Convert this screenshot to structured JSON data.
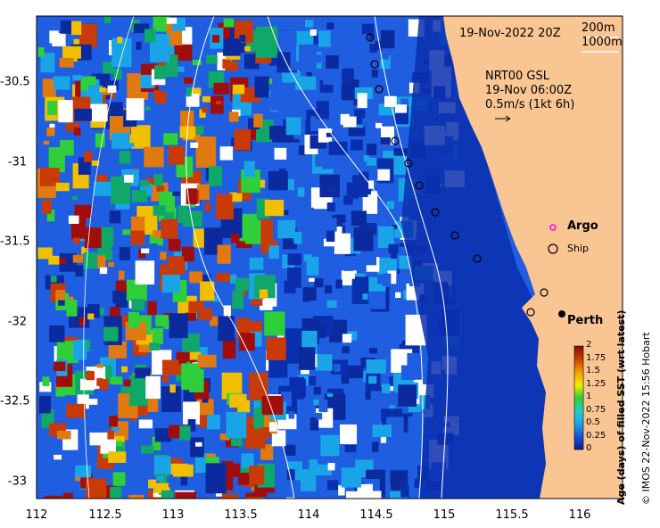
{
  "header": {
    "date": "19-Nov-2022 20Z",
    "contour_200": "200m",
    "contour_1000": "1000m"
  },
  "current_info": {
    "model": "NRT00 GSL",
    "time": "19-Nov 06:00Z",
    "scale": "0.5m/s (1kt 6h)"
  },
  "legend": {
    "argo": "Argo",
    "ship": "Ship",
    "city": "Perth"
  },
  "axes": {
    "x_ticks": [
      "112",
      "112.5",
      "113",
      "113.5",
      "114",
      "114.5",
      "115",
      "115.5",
      "116"
    ],
    "y_ticks": [
      "-30.5",
      "-31",
      "-31.5",
      "-32",
      "-32.5",
      "-33"
    ]
  },
  "colorbar": {
    "label": "Age (days) of filled SST (wrt latest)",
    "ticks": [
      "2",
      "1.75",
      "1.5",
      "1.25",
      "1",
      "0.75",
      "0.5",
      "0.25",
      "0"
    ]
  },
  "credit": "© IMOS 22-Nov-2022 15:56 Hobart",
  "colors": {
    "land": "#f9c592",
    "ocean_deep": "#0a2fae",
    "ocean_mid": "#1f5ee0",
    "contour": "#ffffff"
  }
}
